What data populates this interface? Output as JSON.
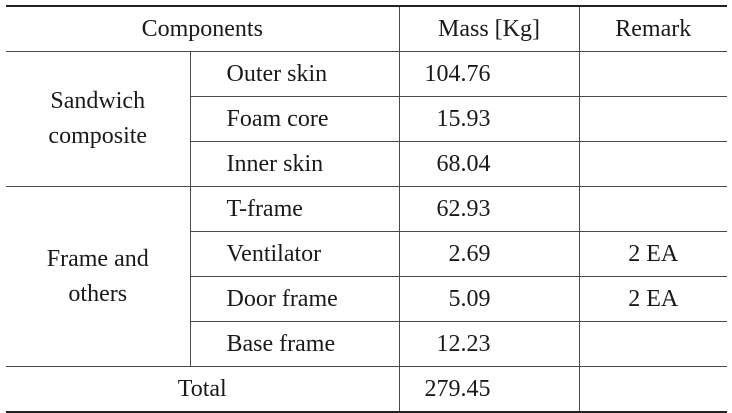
{
  "table": {
    "headers": {
      "components": "Components",
      "mass": "Mass [Kg]",
      "remark": "Remark"
    },
    "groups": [
      {
        "label_lines": [
          "Sandwich",
          "composite"
        ],
        "rows": [
          {
            "component": "Outer skin",
            "mass": "104.76",
            "remark": ""
          },
          {
            "component": "Foam core",
            "mass": "15.93",
            "remark": ""
          },
          {
            "component": "Inner skin",
            "mass": "68.04",
            "remark": ""
          }
        ]
      },
      {
        "label_lines": [
          "Frame and",
          "others"
        ],
        "rows": [
          {
            "component": "T-frame",
            "mass": "62.93",
            "remark": ""
          },
          {
            "component": "Ventilator",
            "mass": "2.69",
            "remark": "2 EA"
          },
          {
            "component": "Door frame",
            "mass": "5.09",
            "remark": "2 EA"
          },
          {
            "component": "Base frame",
            "mass": "12.23",
            "remark": ""
          }
        ]
      }
    ],
    "total": {
      "label": "Total",
      "mass": "279.45",
      "remark": ""
    }
  }
}
